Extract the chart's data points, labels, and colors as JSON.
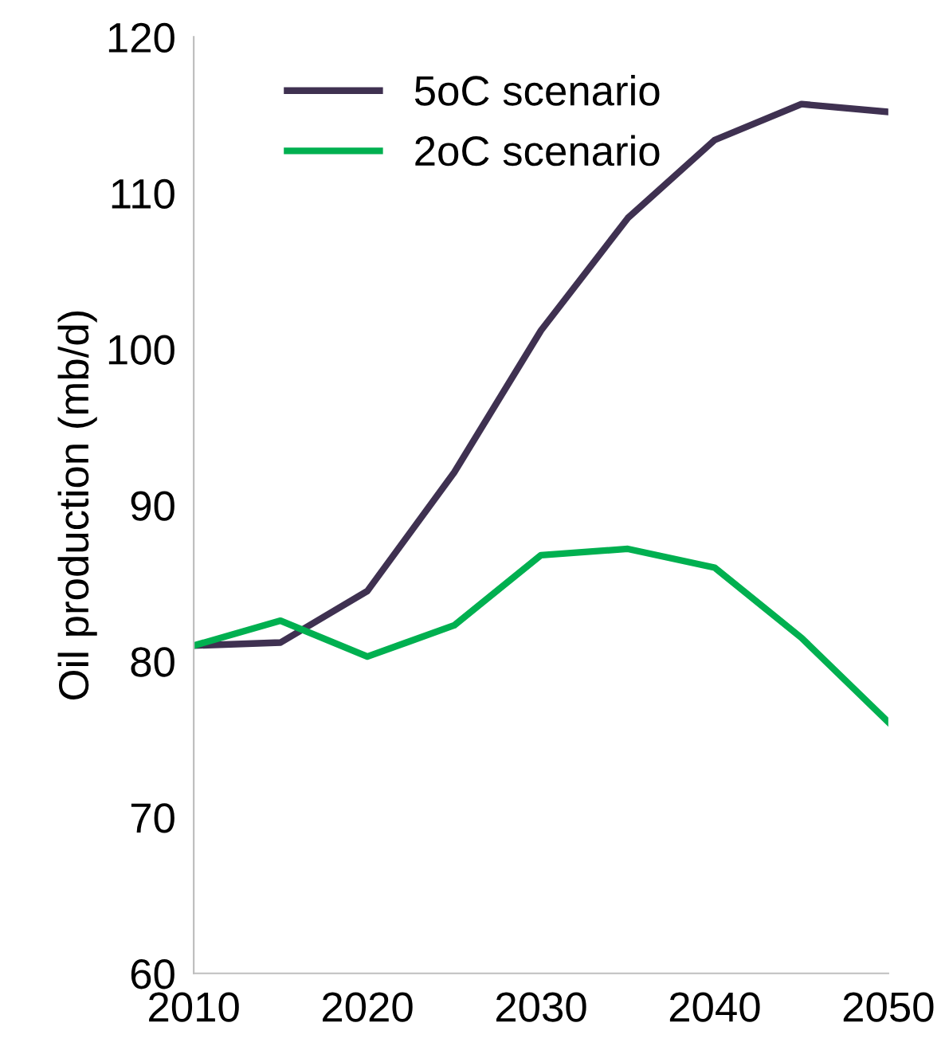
{
  "chart_data": {
    "type": "line",
    "ylabel": "Oil production (mb/d)",
    "x": [
      2010,
      2015,
      2020,
      2025,
      2030,
      2035,
      2040,
      2045,
      2050
    ],
    "series": [
      {
        "name": "5oC scenario",
        "color": "#3f3151",
        "values": [
          81.0,
          81.2,
          84.5,
          92.1,
          101.2,
          108.4,
          113.4,
          115.7,
          115.2
        ]
      },
      {
        "name": "2oC scenario",
        "color": "#00b050",
        "values": [
          81.0,
          82.6,
          80.3,
          82.3,
          86.8,
          87.2,
          86.0,
          81.5,
          76.1
        ]
      }
    ],
    "xlim": [
      2010,
      2050
    ],
    "xticks": [
      2010,
      2020,
      2030,
      2040,
      2050
    ],
    "ylim": [
      60,
      120
    ],
    "yticks": [
      60,
      70,
      80,
      90,
      100,
      110,
      120
    ],
    "grid": false,
    "legend": "top left",
    "marker": "none",
    "line_style": "solid"
  }
}
